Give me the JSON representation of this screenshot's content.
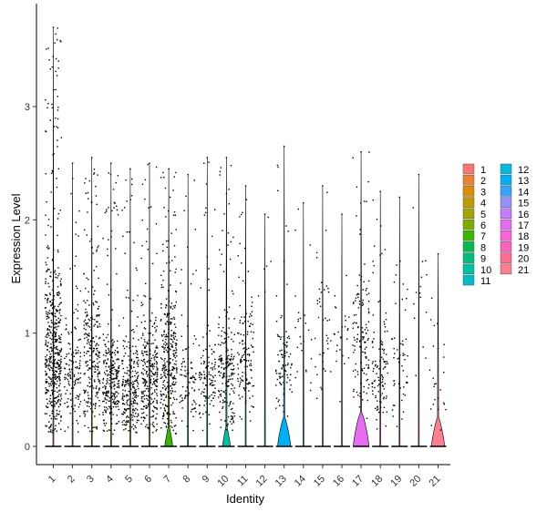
{
  "chart_data": {
    "type": "violin",
    "title": "",
    "xlabel": "Identity",
    "ylabel": "Expression Level",
    "ylim": [
      -0.15,
      3.9
    ],
    "yticks": [
      0,
      1,
      2,
      3
    ],
    "grid": false,
    "legend_placement": "right",
    "categories": [
      "1",
      "2",
      "3",
      "4",
      "5",
      "6",
      "7",
      "8",
      "9",
      "10",
      "11",
      "12",
      "13",
      "14",
      "15",
      "16",
      "17",
      "18",
      "19",
      "20",
      "21"
    ],
    "colors": [
      "#F8766D",
      "#EA8331",
      "#D89000",
      "#C09B00",
      "#A3A500",
      "#7CAE00",
      "#39B600",
      "#00BB4E",
      "#00BF7D",
      "#00C1A3",
      "#00BFC4",
      "#00BAE0",
      "#00B0F6",
      "#35A2FF",
      "#9590FF",
      "#C77CFF",
      "#E76BF3",
      "#FA62DB",
      "#FF62BC",
      "#FF6C91",
      "#FF7F8F"
    ],
    "series": [
      {
        "category": "1",
        "max": 3.7,
        "dense_lo": 0.25,
        "dense_hi": 1.35,
        "n": 520,
        "violin_peak": 0,
        "violin_width": 0.0
      },
      {
        "category": "2",
        "max": 2.5,
        "dense_lo": 0.25,
        "dense_hi": 1.0,
        "n": 140,
        "violin_peak": 0,
        "violin_width": 0.0
      },
      {
        "category": "3",
        "max": 2.55,
        "dense_lo": 0.3,
        "dense_hi": 1.3,
        "n": 260,
        "violin_peak": 0,
        "violin_width": 0.0
      },
      {
        "category": "4",
        "max": 2.5,
        "dense_lo": 0.25,
        "dense_hi": 0.9,
        "n": 270,
        "violin_peak": 0,
        "violin_width": 0.0
      },
      {
        "category": "5",
        "max": 2.45,
        "dense_lo": 0.15,
        "dense_hi": 0.85,
        "n": 250,
        "violin_peak": 0,
        "violin_width": 0.0
      },
      {
        "category": "6",
        "max": 2.5,
        "dense_lo": 0.25,
        "dense_hi": 1.0,
        "n": 280,
        "violin_peak": 0,
        "violin_width": 0.0
      },
      {
        "category": "7",
        "max": 2.45,
        "dense_lo": 0.2,
        "dense_hi": 1.3,
        "n": 320,
        "violin_peak": 0,
        "violin_width": 0.45
      },
      {
        "category": "8",
        "max": 2.4,
        "dense_lo": 0.3,
        "dense_hi": 0.9,
        "n": 90,
        "violin_peak": 0,
        "violin_width": 0.0
      },
      {
        "category": "9",
        "max": 2.55,
        "dense_lo": 0.3,
        "dense_hi": 0.8,
        "n": 120,
        "violin_peak": 0,
        "violin_width": 0.0
      },
      {
        "category": "10",
        "max": 2.55,
        "dense_lo": 0.3,
        "dense_hi": 1.0,
        "n": 200,
        "violin_peak": 0,
        "violin_width": 0.45
      },
      {
        "category": "11",
        "max": 2.3,
        "dense_lo": 0.35,
        "dense_hi": 1.1,
        "n": 130,
        "violin_peak": 0,
        "violin_width": 0.0
      },
      {
        "category": "12",
        "max": 2.05,
        "dense_lo": 1.3,
        "dense_hi": 2.0,
        "n": 6,
        "violin_peak": 0,
        "violin_width": 0.0
      },
      {
        "category": "13",
        "max": 2.65,
        "dense_lo": 0.45,
        "dense_hi": 1.0,
        "n": 90,
        "violin_peak": 0,
        "violin_width": 0.75
      },
      {
        "category": "14",
        "max": 2.15,
        "dense_lo": 0.5,
        "dense_hi": 1.3,
        "n": 25,
        "violin_peak": 0,
        "violin_width": 0.0
      },
      {
        "category": "15",
        "max": 2.3,
        "dense_lo": 0.5,
        "dense_hi": 1.4,
        "n": 40,
        "violin_peak": 0,
        "violin_width": 0.0
      },
      {
        "category": "16",
        "max": 2.05,
        "dense_lo": 0.6,
        "dense_hi": 1.3,
        "n": 25,
        "violin_peak": 0,
        "violin_width": 0.0
      },
      {
        "category": "17",
        "max": 2.6,
        "dense_lo": 0.45,
        "dense_hi": 1.35,
        "n": 130,
        "violin_peak": 0,
        "violin_width": 0.9
      },
      {
        "category": "18",
        "max": 2.25,
        "dense_lo": 0.3,
        "dense_hi": 1.0,
        "n": 110,
        "violin_peak": 0,
        "violin_width": 0.0
      },
      {
        "category": "19",
        "max": 2.2,
        "dense_lo": 0.3,
        "dense_hi": 1.1,
        "n": 55,
        "violin_peak": 0,
        "violin_width": 0.0
      },
      {
        "category": "20",
        "max": 2.4,
        "dense_lo": 0.6,
        "dense_hi": 1.8,
        "n": 15,
        "violin_peak": 0,
        "violin_width": 0.0
      },
      {
        "category": "21",
        "max": 1.7,
        "dense_lo": 0.25,
        "dense_hi": 1.0,
        "n": 25,
        "violin_peak": 0,
        "violin_width": 0.75
      }
    ]
  }
}
